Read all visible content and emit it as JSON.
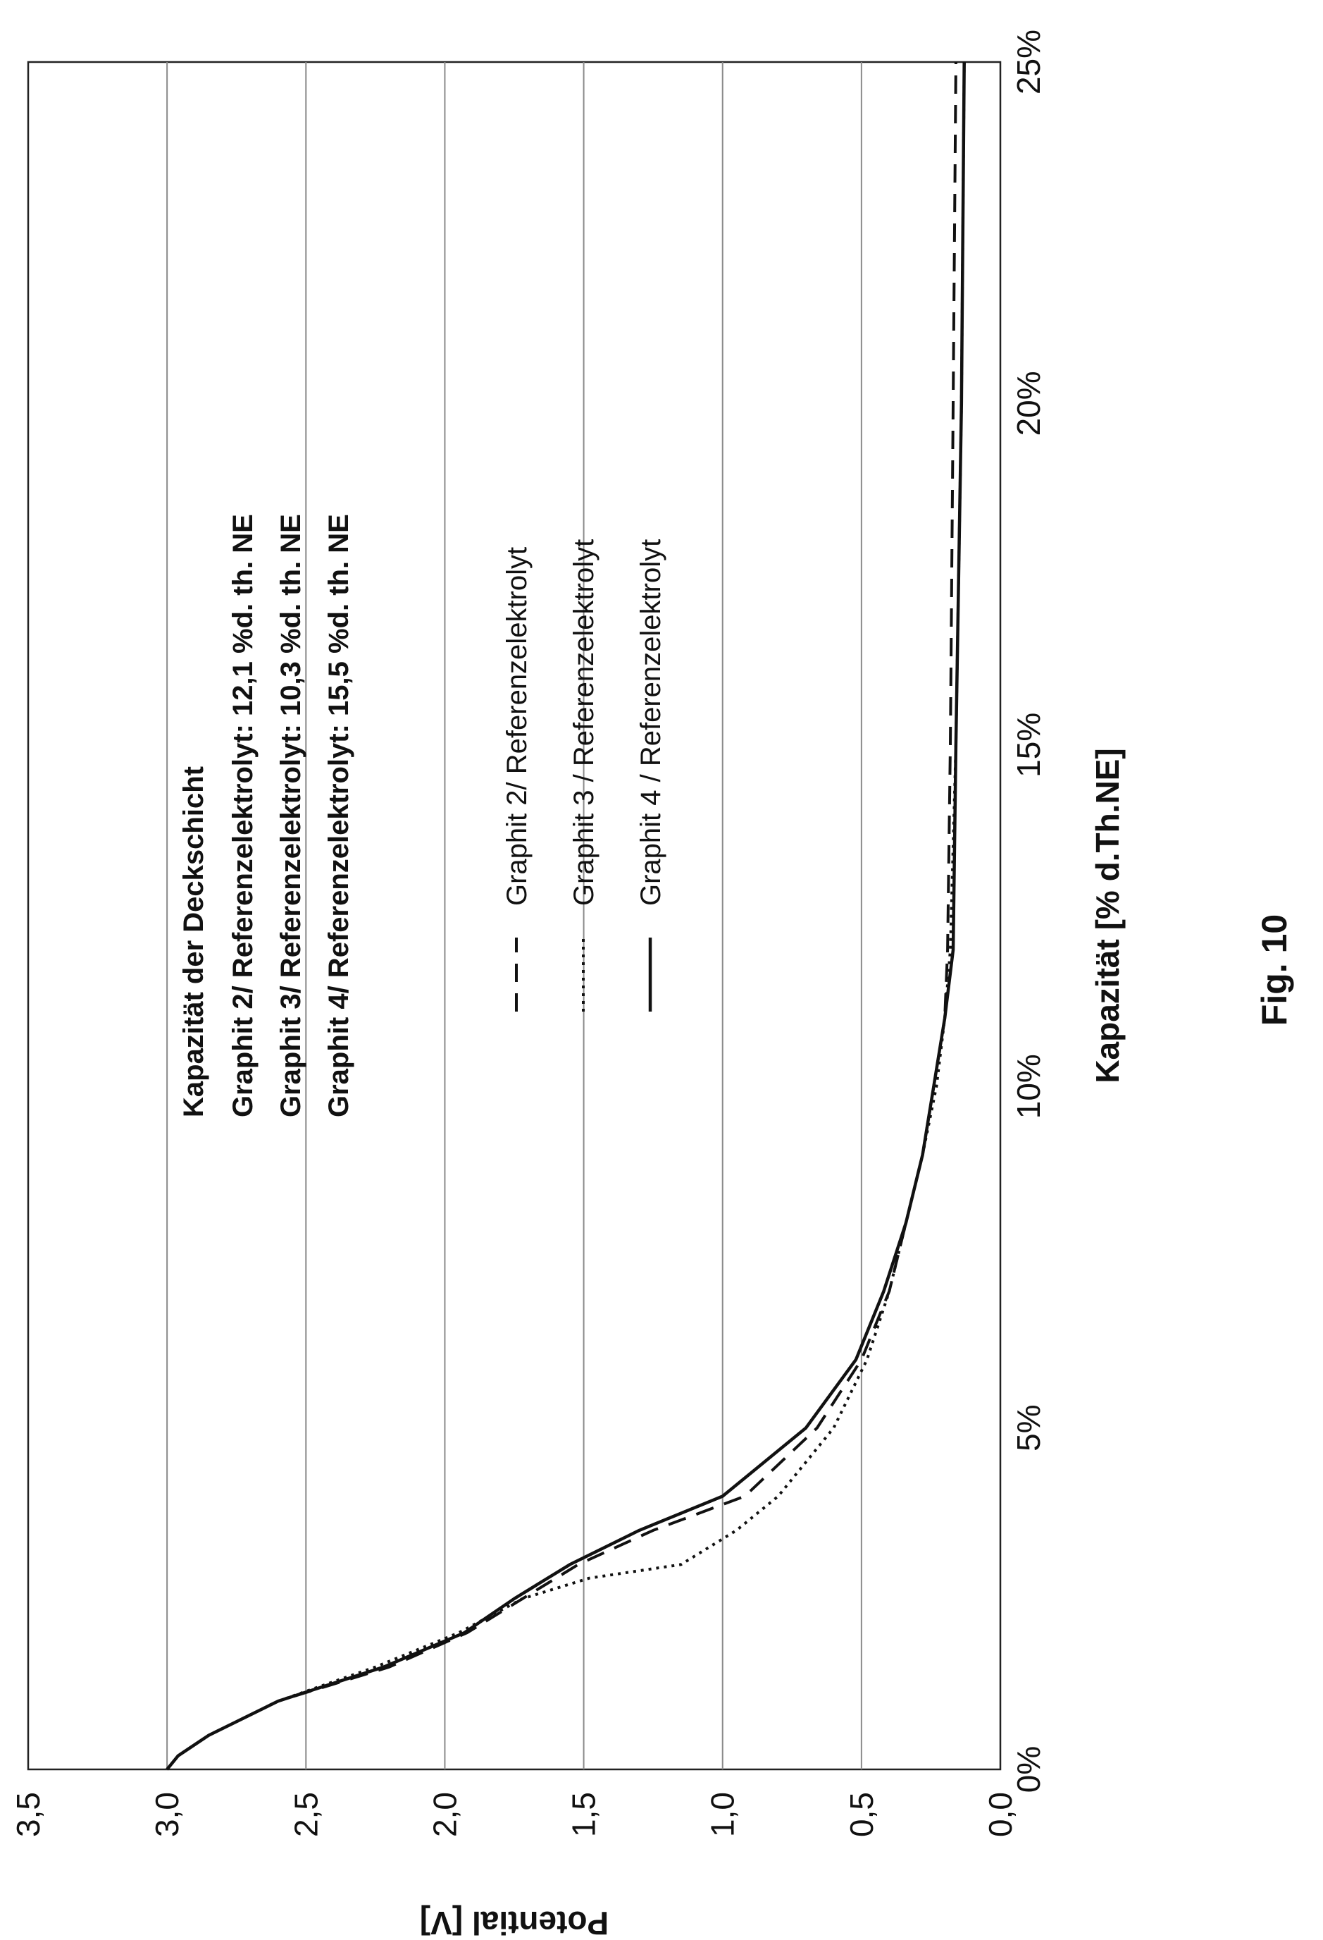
{
  "figure_label": "Fig. 10",
  "chart_data": {
    "type": "line",
    "title": "",
    "xlabel": "Kapazität [% d.Th.NE]",
    "ylabel": "Potential [V]",
    "xlim": [
      0,
      25
    ],
    "ylim": [
      0,
      3.5
    ],
    "x_ticks": [
      {
        "value": 0,
        "label": "0%"
      },
      {
        "value": 5,
        "label": "5%"
      },
      {
        "value": 10,
        "label": "10%"
      },
      {
        "value": 15,
        "label": "15%"
      },
      {
        "value": 20,
        "label": "20%"
      },
      {
        "value": 25,
        "label": "25%"
      }
    ],
    "y_ticks": [
      {
        "value": 0,
        "label": "0,0"
      },
      {
        "value": 0.5,
        "label": "0,5"
      },
      {
        "value": 1.0,
        "label": "1,0"
      },
      {
        "value": 1.5,
        "label": "1,5"
      },
      {
        "value": 2.0,
        "label": "2,0"
      },
      {
        "value": 2.5,
        "label": "2,5"
      },
      {
        "value": 3.0,
        "label": "3,0"
      },
      {
        "value": 3.5,
        "label": "3,5"
      }
    ],
    "grid": "horizontal",
    "annotation": {
      "title": "Kapazität der Deckschicht",
      "lines": [
        "Graphit 2/ Referenzelektrolyt:  12,1 %d. th. NE",
        "Graphit 3/ Referenzelektrolyt:  10,3 %d. th. NE",
        "Graphit 4/ Referenzelektrolyt:  15,5 %d. th. NE"
      ]
    },
    "legend_placement": "center",
    "series": [
      {
        "name": "Graphit 2/ Referenzelektrolyt",
        "style": "dashed",
        "x": [
          0,
          0.2,
          0.5,
          1.0,
          1.5,
          2.0,
          2.5,
          3.0,
          3.5,
          4.0,
          5.0,
          6.0,
          7.0,
          8.0,
          9.0,
          10.0,
          11.0,
          12.0,
          15.0,
          20.0,
          25.0
        ],
        "y": [
          3.0,
          2.96,
          2.85,
          2.6,
          2.2,
          1.92,
          1.72,
          1.52,
          1.25,
          0.92,
          0.66,
          0.5,
          0.4,
          0.34,
          0.28,
          0.24,
          0.2,
          0.19,
          0.18,
          0.17,
          0.16
        ]
      },
      {
        "name": "Graphit 3 / Referenzelektrolyt",
        "style": "dotted",
        "x": [
          0,
          0.2,
          0.5,
          1.0,
          1.5,
          2.0,
          2.5,
          2.8,
          3.0,
          3.5,
          4.0,
          5.0,
          6.0,
          7.0,
          8.0,
          9.0,
          10.0,
          11.0,
          12.0,
          15.0,
          20.0,
          25.0
        ],
        "y": [
          3.0,
          2.96,
          2.85,
          2.6,
          2.25,
          1.95,
          1.72,
          1.48,
          1.15,
          0.95,
          0.8,
          0.6,
          0.48,
          0.4,
          0.34,
          0.28,
          0.23,
          0.2,
          0.18,
          0.16,
          0.14,
          0.13
        ]
      },
      {
        "name": "Graphit 4 / Referenzelektrolyt",
        "style": "solid",
        "x": [
          0,
          0.2,
          0.5,
          1.0,
          1.5,
          2.0,
          2.5,
          3.0,
          3.5,
          4.0,
          5.0,
          6.0,
          7.0,
          8.0,
          9.0,
          10.0,
          11.0,
          12.0,
          15.0,
          20.0,
          25.0
        ],
        "y": [
          3.0,
          2.96,
          2.85,
          2.6,
          2.22,
          1.93,
          1.75,
          1.55,
          1.3,
          1.0,
          0.7,
          0.52,
          0.42,
          0.34,
          0.28,
          0.24,
          0.2,
          0.17,
          0.16,
          0.14,
          0.13
        ]
      }
    ]
  }
}
